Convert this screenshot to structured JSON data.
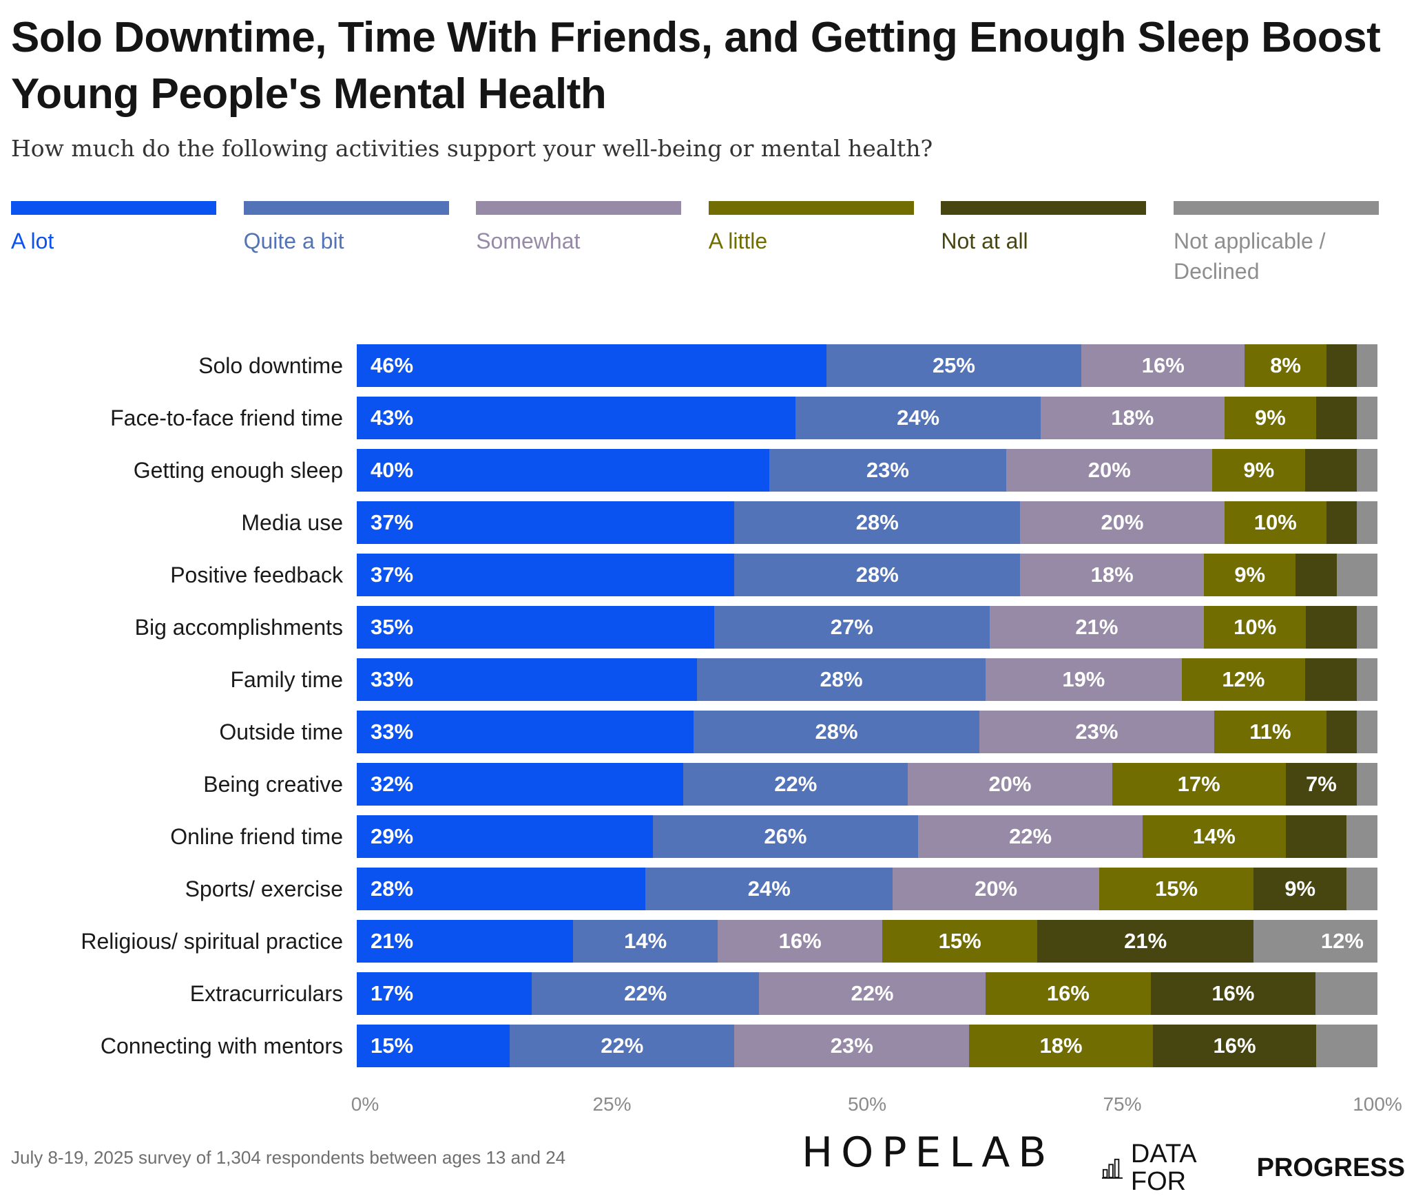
{
  "title": "Solo Downtime, Time With Friends, and Getting Enough Sleep Boost Young People's Mental Health",
  "subtitle": "How much do the following activities support your well-being or mental health?",
  "footnote": "July 8-19, 2025 survey of 1,304 respondents between ages 13 and 24",
  "logos": {
    "hopelab": "HOPELAB",
    "dfp_light": "DATA FOR",
    "dfp_bold": "PROGRESS"
  },
  "colors": {
    "a_lot": "#0a53f0",
    "quite_a_bit": "#5373b8",
    "somewhat": "#968aa7",
    "a_little": "#726d00",
    "not_at_all": "#484610",
    "not_applicable": "#8e8e8e"
  },
  "chart_data": {
    "type": "bar",
    "orientation": "horizontal",
    "stacked": true,
    "title": "Solo Downtime, Time With Friends, and Getting Enough Sleep Boost Young People's Mental Health",
    "subtitle": "How much do the following activities support your well-being or mental health?",
    "xlabel": "",
    "ylabel": "",
    "xlim": [
      0,
      100
    ],
    "xticks": [
      "0%",
      "25%",
      "50%",
      "75%",
      "100%"
    ],
    "grid": false,
    "legend_position": "top",
    "categories": [
      "Solo downtime",
      "Face-to-face friend time",
      "Getting enough sleep",
      "Media use",
      "Positive feedback",
      "Big accomplishments",
      "Family time",
      "Outside time",
      "Being creative",
      "Online friend time",
      "Sports/ exercise",
      "Religious/ spiritual practice",
      "Extracurriculars",
      "Connecting with mentors"
    ],
    "series": [
      {
        "name": "A lot",
        "key": "a_lot",
        "values": [
          46,
          43,
          40,
          37,
          37,
          35,
          33,
          33,
          32,
          29,
          28,
          21,
          17,
          15
        ],
        "labeled": [
          true,
          true,
          true,
          true,
          true,
          true,
          true,
          true,
          true,
          true,
          true,
          true,
          true,
          true
        ]
      },
      {
        "name": "Quite a bit",
        "key": "quite_a_bit",
        "values": [
          25,
          24,
          23,
          28,
          28,
          27,
          28,
          28,
          22,
          26,
          24,
          14,
          22,
          22
        ],
        "labeled": [
          true,
          true,
          true,
          true,
          true,
          true,
          true,
          true,
          true,
          true,
          true,
          true,
          true,
          true
        ]
      },
      {
        "name": "Somewhat",
        "key": "somewhat",
        "values": [
          16,
          18,
          20,
          20,
          18,
          21,
          19,
          23,
          20,
          22,
          20,
          16,
          22,
          23
        ],
        "labeled": [
          true,
          true,
          true,
          true,
          true,
          true,
          true,
          true,
          true,
          true,
          true,
          true,
          true,
          true
        ]
      },
      {
        "name": "A little",
        "key": "a_little",
        "values": [
          8,
          9,
          9,
          10,
          9,
          10,
          12,
          11,
          17,
          14,
          15,
          15,
          16,
          18
        ],
        "labeled": [
          true,
          true,
          true,
          true,
          true,
          true,
          true,
          true,
          true,
          true,
          true,
          true,
          true,
          true
        ]
      },
      {
        "name": "Not at all",
        "key": "not_at_all",
        "values": [
          3,
          4,
          5,
          3,
          4,
          5,
          5,
          3,
          7,
          6,
          9,
          21,
          16,
          16
        ],
        "labeled": [
          false,
          false,
          false,
          false,
          false,
          false,
          false,
          false,
          true,
          false,
          true,
          true,
          true,
          true
        ]
      },
      {
        "name": "Not applicable / Declined",
        "key": "not_applicable",
        "values": [
          2,
          2,
          2,
          2,
          4,
          2,
          2,
          2,
          2,
          3,
          3,
          12,
          6,
          6
        ],
        "labeled": [
          false,
          false,
          false,
          false,
          false,
          false,
          false,
          false,
          false,
          false,
          false,
          true,
          false,
          false
        ]
      }
    ]
  }
}
